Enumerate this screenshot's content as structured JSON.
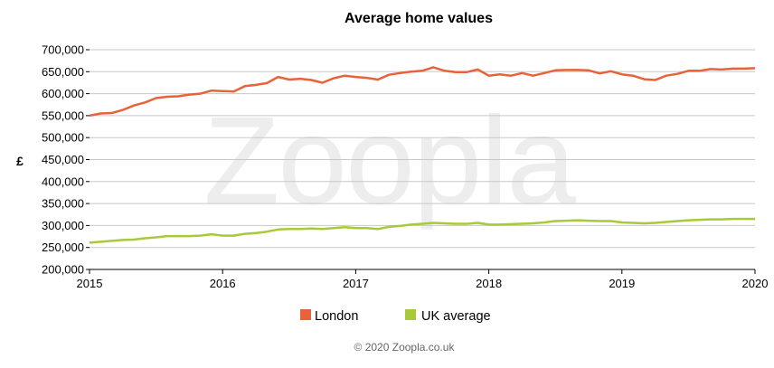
{
  "chart_data": {
    "type": "line",
    "title": "Average home values",
    "ylabel": "£",
    "xlabel": "",
    "xlim": [
      2015,
      2020
    ],
    "ylim": [
      200000,
      700000
    ],
    "x_ticks": [
      "2015",
      "2016",
      "2017",
      "2018",
      "2019",
      "2020"
    ],
    "y_ticks": [
      "200,000",
      "250,000",
      "300,000",
      "350,000",
      "400,000",
      "450,000",
      "500,000",
      "550,000",
      "600,000",
      "650,000",
      "700,000"
    ],
    "grid": true,
    "legend_position": "bottom",
    "watermark": "Zoopla",
    "credit": "© 2020 Zoopla.co.uk",
    "series": [
      {
        "name": "London",
        "color": "#e8623a",
        "x": [
          2015.0,
          2015.083,
          2015.167,
          2015.25,
          2015.333,
          2015.417,
          2015.5,
          2015.583,
          2015.667,
          2015.75,
          2015.833,
          2015.917,
          2016.0,
          2016.083,
          2016.167,
          2016.25,
          2016.333,
          2016.417,
          2016.5,
          2016.583,
          2016.667,
          2016.75,
          2016.833,
          2016.917,
          2017.0,
          2017.083,
          2017.167,
          2017.25,
          2017.333,
          2017.417,
          2017.5,
          2017.583,
          2017.667,
          2017.75,
          2017.833,
          2017.917,
          2018.0,
          2018.083,
          2018.167,
          2018.25,
          2018.333,
          2018.417,
          2018.5,
          2018.583,
          2018.667,
          2018.75,
          2018.833,
          2018.917,
          2019.0,
          2019.083,
          2019.167,
          2019.25,
          2019.333,
          2019.417,
          2019.5,
          2019.583,
          2019.667,
          2019.75,
          2019.833,
          2019.917,
          2020.0
        ],
        "values": [
          550000,
          555000,
          556000,
          563000,
          573000,
          580000,
          590000,
          593000,
          594000,
          598000,
          600000,
          607000,
          606000,
          605000,
          617000,
          620000,
          624000,
          638000,
          632000,
          634000,
          631000,
          625000,
          635000,
          641000,
          638000,
          636000,
          632000,
          643000,
          647000,
          650000,
          652000,
          660000,
          652000,
          649000,
          649000,
          655000,
          641000,
          644000,
          641000,
          647000,
          641000,
          647000,
          653000,
          654000,
          654000,
          653000,
          646000,
          651000,
          644000,
          641000,
          633000,
          631000,
          641000,
          645000,
          652000,
          652000,
          656000,
          655000,
          657000,
          657000,
          658000
        ]
      },
      {
        "name": "UK average",
        "color": "#a8c93a",
        "x": [
          2015.0,
          2015.083,
          2015.167,
          2015.25,
          2015.333,
          2015.417,
          2015.5,
          2015.583,
          2015.667,
          2015.75,
          2015.833,
          2015.917,
          2016.0,
          2016.083,
          2016.167,
          2016.25,
          2016.333,
          2016.417,
          2016.5,
          2016.583,
          2016.667,
          2016.75,
          2016.833,
          2016.917,
          2017.0,
          2017.083,
          2017.167,
          2017.25,
          2017.333,
          2017.417,
          2017.5,
          2017.583,
          2017.667,
          2017.75,
          2017.833,
          2017.917,
          2018.0,
          2018.083,
          2018.167,
          2018.25,
          2018.333,
          2018.417,
          2018.5,
          2018.583,
          2018.667,
          2018.75,
          2018.833,
          2018.917,
          2019.0,
          2019.083,
          2019.167,
          2019.25,
          2019.333,
          2019.417,
          2019.5,
          2019.583,
          2019.667,
          2019.75,
          2019.833,
          2019.917,
          2020.0
        ],
        "values": [
          261000,
          263000,
          265000,
          267000,
          268000,
          271000,
          273000,
          276000,
          276000,
          276000,
          277000,
          280000,
          277000,
          277000,
          281000,
          283000,
          286000,
          291000,
          292000,
          292000,
          293000,
          292000,
          294000,
          296000,
          294000,
          294000,
          292000,
          297000,
          299000,
          302000,
          304000,
          306000,
          305000,
          304000,
          304000,
          306000,
          302000,
          302000,
          303000,
          304000,
          305000,
          307000,
          310000,
          311000,
          312000,
          311000,
          310000,
          310000,
          307000,
          306000,
          305000,
          306000,
          308000,
          310000,
          312000,
          313000,
          314000,
          314000,
          315000,
          315000,
          315000
        ]
      }
    ]
  }
}
